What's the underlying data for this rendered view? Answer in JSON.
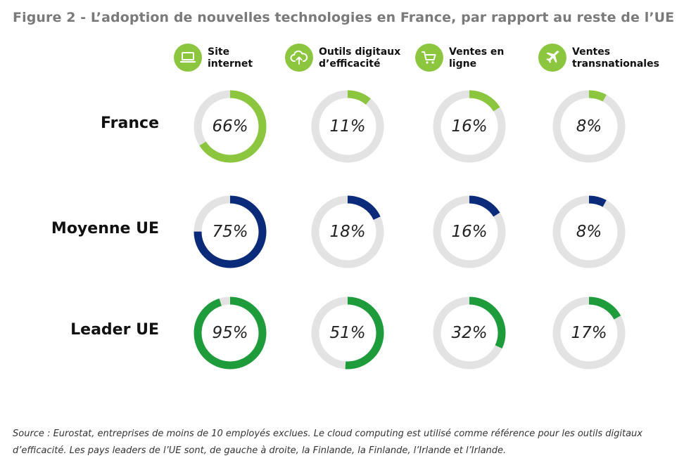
{
  "title": "Figure 2 - L’adoption de nouvelles technologies en France, par rapport au reste de l’UE",
  "source": "Source : Eurostat, entreprises de moins de 10 employés exclues. Le cloud computing est utilisé comme référence pour les outils digitaux d’efficacité. Les pays leaders de l’UE sont, de gauche à droite, la Finlande, la Finlande, l’Irlande et l’Irlande.",
  "categories": [
    {
      "label": "Site\ninternet",
      "icon": "laptop-icon"
    },
    {
      "label": "Outils digitaux\nd’efficacité",
      "icon": "cloud-upload-icon"
    },
    {
      "label": "Ventes en\nligne",
      "icon": "shopping-cart-icon"
    },
    {
      "label": "Ventes\ntransnationales",
      "icon": "airplane-icon"
    }
  ],
  "colors": {
    "icon_bg": "#8cc63f",
    "track": "#e3e3e3",
    "France": "#8cc63f",
    "Moyenne UE": "#0a2a7a",
    "Leader UE": "#1e9c3c"
  },
  "chart_data": {
    "type": "donut-grid",
    "categories": [
      "Site internet",
      "Outils digitaux d’efficacité",
      "Ventes en ligne",
      "Ventes transnationales"
    ],
    "series": [
      {
        "name": "France",
        "values": [
          66,
          11,
          16,
          8
        ],
        "labels": [
          "66%",
          "11%",
          "16%",
          "8%"
        ]
      },
      {
        "name": "Moyenne UE",
        "values": [
          75,
          18,
          16,
          8
        ],
        "labels": [
          "75%",
          "18%",
          "16%",
          "8%"
        ]
      },
      {
        "name": "Leader UE",
        "values": [
          95,
          51,
          32,
          17
        ],
        "labels": [
          "95%",
          "51%",
          "32%",
          "17%"
        ]
      }
    ],
    "unit": "%",
    "max": 100
  }
}
